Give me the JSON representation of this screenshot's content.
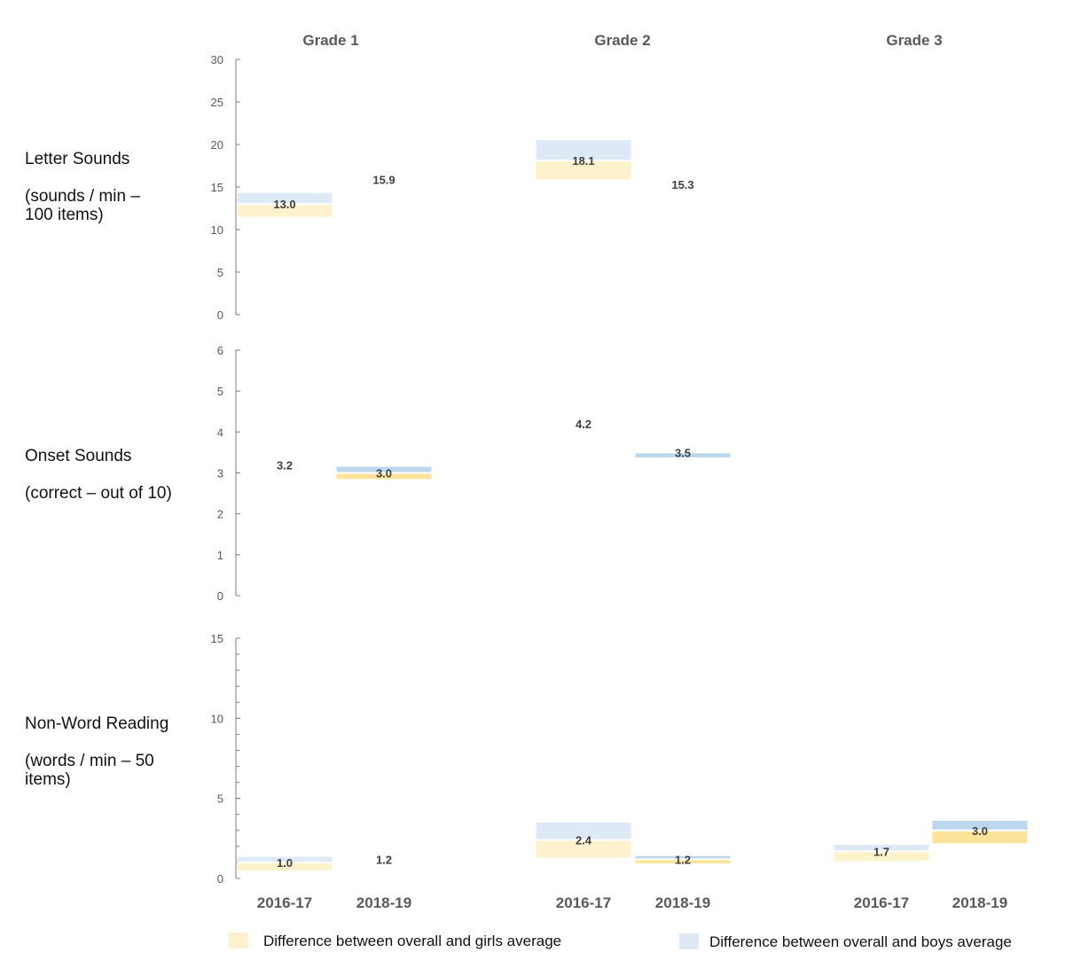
{
  "chart_data": {
    "type": "range_bar",
    "grades": [
      "Grade 1",
      "Grade 2",
      "Grade 3"
    ],
    "periods": [
      "2016-17",
      "2018-19"
    ],
    "legend": {
      "girls": "Difference between overall and girls average",
      "boys": "Difference between overall and boys average"
    },
    "colors": {
      "girls_light": "#fef2cc",
      "girls_dark": "#fde29a",
      "boys_light": "#dde9f5",
      "boys_dark": "#bcd6ee",
      "axis": "#7f7f7f"
    },
    "panels": [
      {
        "label_lines": [
          "Letter Sounds",
          "",
          "(sounds / min –",
          "100 items)"
        ],
        "ylim": [
          0,
          30
        ],
        "yticks": [
          0,
          5,
          10,
          15,
          20,
          25,
          30
        ],
        "minor_step": null,
        "cells": [
          {
            "grade": 0,
            "period": 0,
            "overall": 13.0,
            "label": "13.0",
            "girls": 11.5,
            "boys": 14.3,
            "shade": "light"
          },
          {
            "grade": 0,
            "period": 1,
            "overall": 15.9,
            "label": "15.9",
            "girls": null,
            "boys": null,
            "shade": "light"
          },
          {
            "grade": 1,
            "period": 0,
            "overall": 18.1,
            "label": "18.1",
            "girls": 15.9,
            "boys": 20.5,
            "shade": "light"
          },
          {
            "grade": 1,
            "period": 1,
            "overall": 15.3,
            "label": "15.3",
            "girls": null,
            "boys": null,
            "shade": "light"
          }
        ]
      },
      {
        "label_lines": [
          "Onset Sounds",
          "",
          "(correct – out of 10)"
        ],
        "ylim": [
          0,
          6
        ],
        "yticks": [
          0,
          1,
          2,
          3,
          4,
          5,
          6
        ],
        "minor_step": null,
        "cells": [
          {
            "grade": 0,
            "period": 0,
            "overall": 3.2,
            "label": "3.2",
            "girls": null,
            "boys": null,
            "shade": "light"
          },
          {
            "grade": 0,
            "period": 1,
            "overall": 3.0,
            "label": "3.0",
            "girls": 2.85,
            "boys": 3.15,
            "shade": "dark"
          },
          {
            "grade": 1,
            "period": 0,
            "overall": 4.2,
            "label": "4.2",
            "girls": null,
            "boys": null,
            "shade": "light"
          },
          {
            "grade": 1,
            "period": 1,
            "overall": 3.5,
            "label": "3.5",
            "girls": 3.52,
            "boys": 3.38,
            "shade": "dark"
          }
        ]
      },
      {
        "label_lines": [
          "Non-Word Reading",
          "",
          "(words / min – 50",
          "items)"
        ],
        "ylim": [
          0,
          15
        ],
        "yticks": [
          0,
          5,
          10,
          15
        ],
        "minor_step": 1,
        "cells": [
          {
            "grade": 0,
            "period": 0,
            "overall": 1.0,
            "label": "1.0",
            "girls": 0.5,
            "boys": 1.35,
            "shade": "light"
          },
          {
            "grade": 0,
            "period": 1,
            "overall": 1.2,
            "label": "1.2",
            "girls": null,
            "boys": null,
            "shade": "light"
          },
          {
            "grade": 1,
            "period": 0,
            "overall": 2.4,
            "label": "2.4",
            "girls": 1.3,
            "boys": 3.5,
            "shade": "light"
          },
          {
            "grade": 1,
            "period": 1,
            "overall": 1.2,
            "label": "1.2",
            "girls": 0.95,
            "boys": 1.4,
            "shade": "dark"
          },
          {
            "grade": 2,
            "period": 0,
            "overall": 1.7,
            "label": "1.7",
            "girls": 1.1,
            "boys": 2.1,
            "shade": "light"
          },
          {
            "grade": 2,
            "period": 1,
            "overall": 3.0,
            "label": "3.0",
            "girls": 2.2,
            "boys": 3.6,
            "shade": "dark"
          }
        ]
      }
    ]
  }
}
